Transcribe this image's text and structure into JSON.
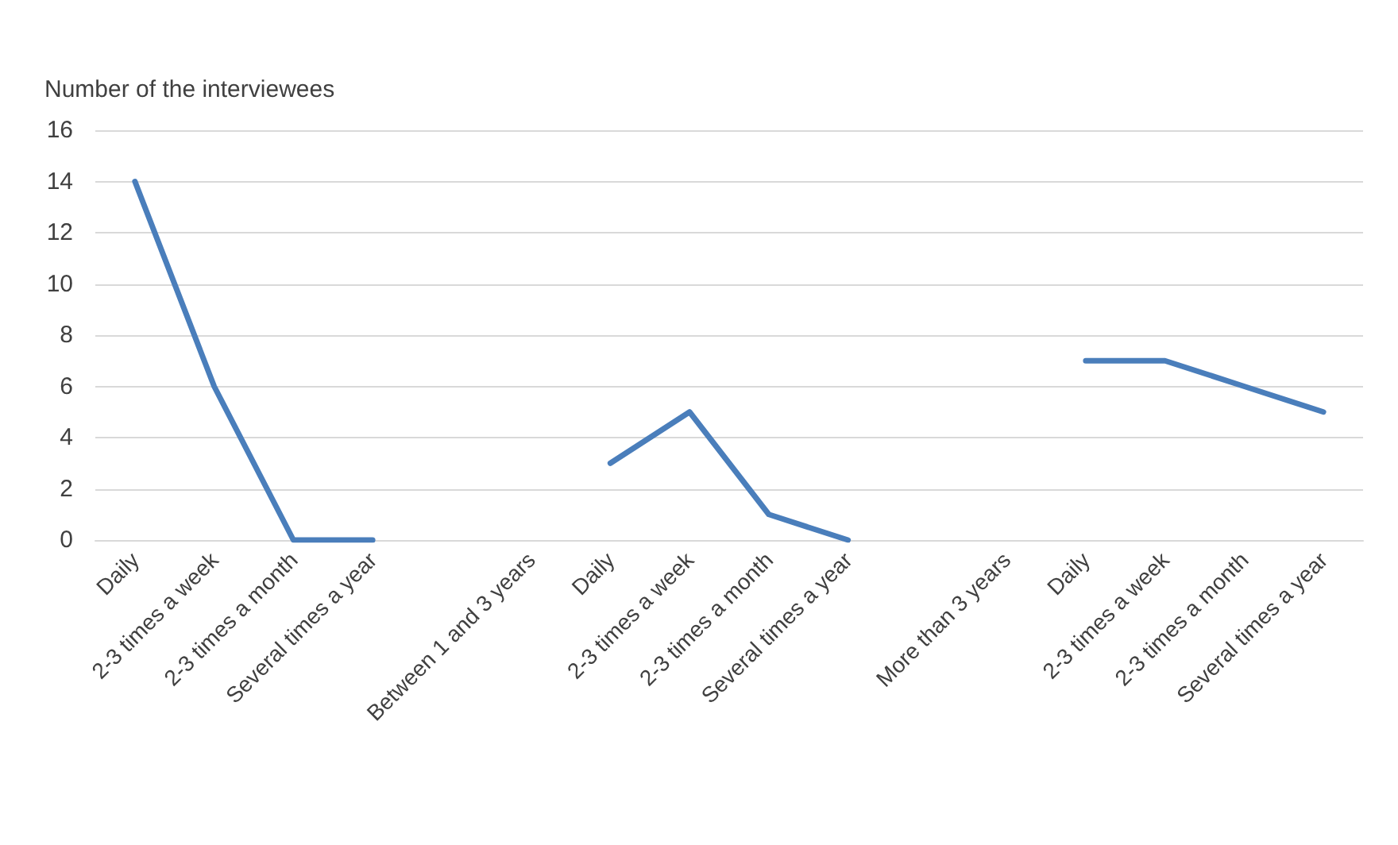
{
  "chart_data": {
    "type": "line",
    "ylabel": "Number of the interviewees",
    "categories": [
      "Daily",
      "2-3 times a week",
      "2-3 times a month",
      "Several times a year",
      null,
      "Between 1 and 3 years",
      "Daily",
      "2-3 times a week",
      "2-3 times a month",
      "Several times a year",
      null,
      "More than 3 years",
      "Daily",
      "2-3 times a week",
      "2-3 times a month",
      "Several times a year"
    ],
    "series": [
      {
        "color": "#4a7ebb",
        "values": [
          14,
          6,
          0,
          0,
          null,
          null,
          3,
          5,
          1,
          0,
          null,
          null,
          7,
          7,
          6,
          5
        ]
      }
    ],
    "ylim": [
      0,
      16
    ],
    "yticks": [
      0,
      2,
      4,
      6,
      8,
      10,
      12,
      14,
      16
    ],
    "grid": "y",
    "marker": "none",
    "line_style": "solid"
  }
}
